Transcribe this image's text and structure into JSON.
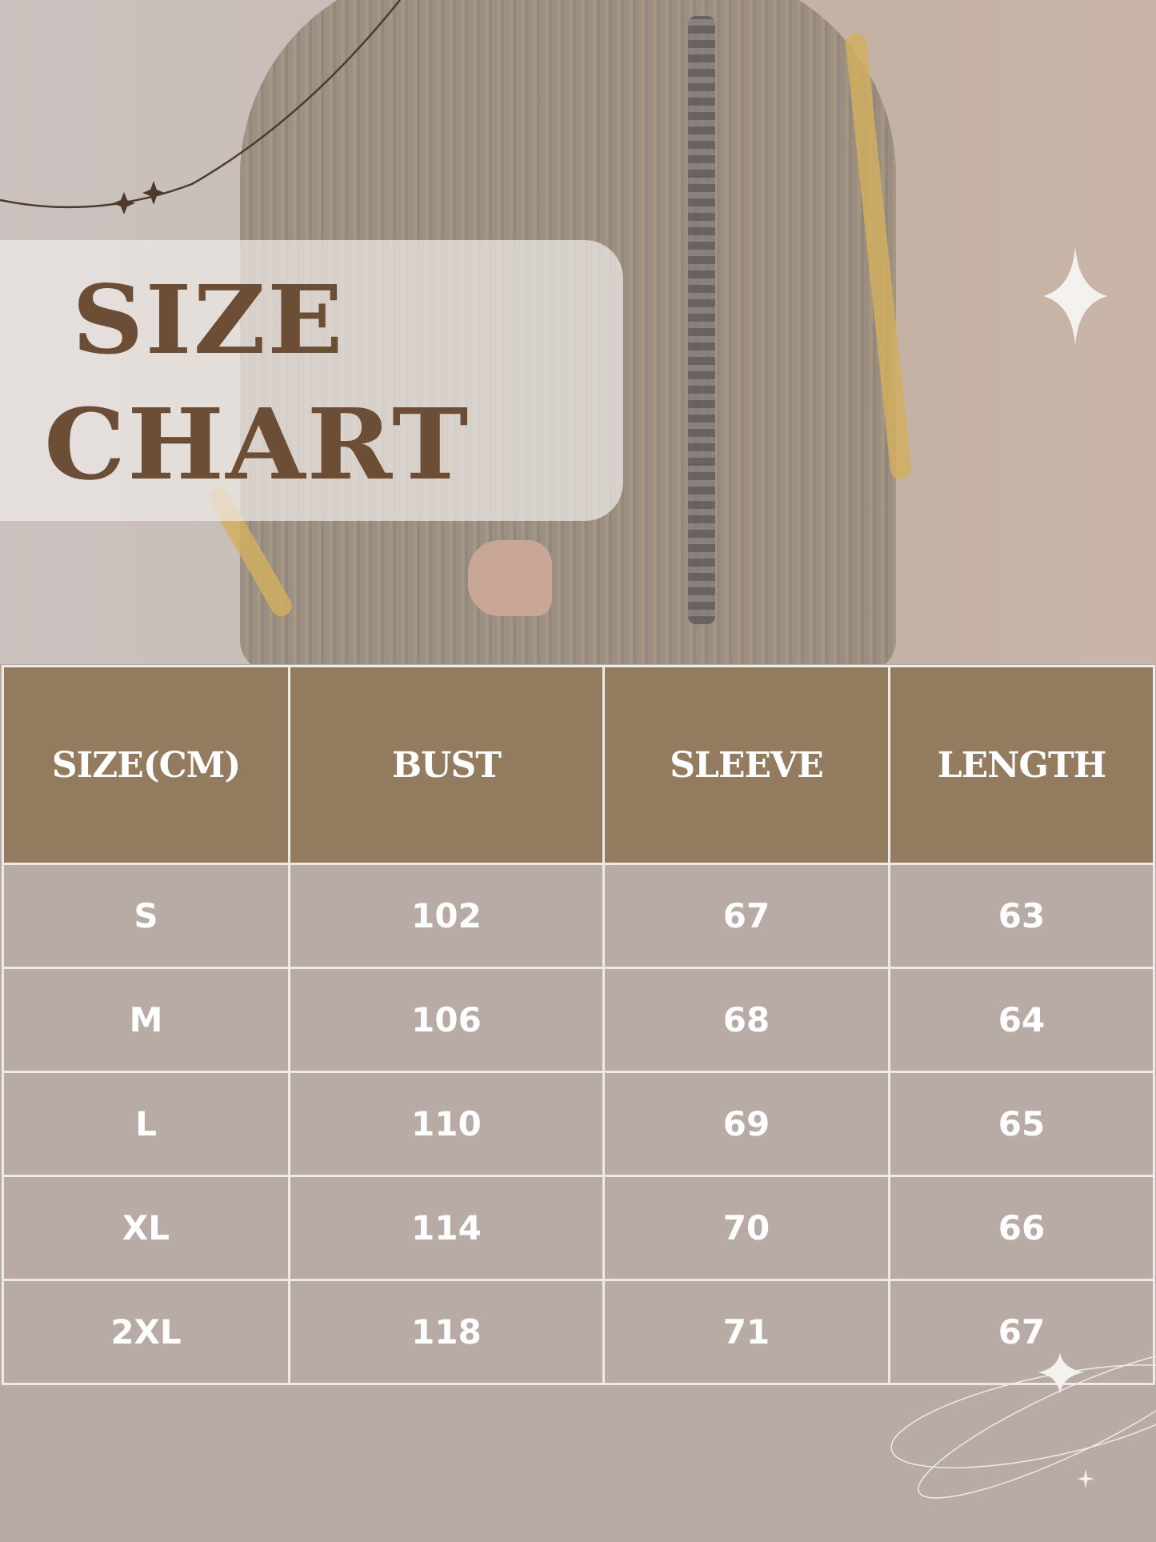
{
  "title": {
    "line1": "SIZE",
    "line2": "CHART"
  },
  "colors": {
    "header_bg": "#937b5f",
    "row_bg": "#b8aba6",
    "title_text": "#6b4e35",
    "grid": "#ecebe8"
  },
  "table": {
    "headers": [
      "SIZE(CM)",
      "BUST",
      "SLEEVE",
      "LENGTH"
    ],
    "rows": [
      [
        "S",
        "102",
        "67",
        "63"
      ],
      [
        "M",
        "106",
        "68",
        "64"
      ],
      [
        "L",
        "110",
        "69",
        "65"
      ],
      [
        "XL",
        "114",
        "70",
        "66"
      ],
      [
        "2XL",
        "118",
        "71",
        "67"
      ]
    ]
  }
}
